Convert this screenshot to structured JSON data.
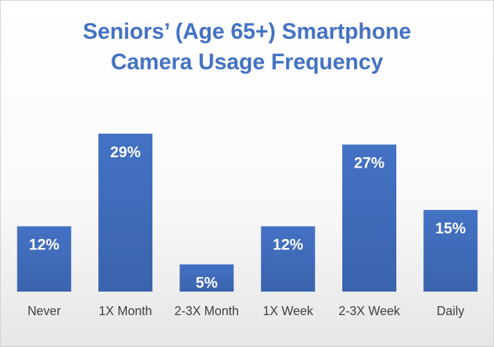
{
  "chart_data": {
    "type": "bar",
    "title_lines": [
      "Seniors’ (Age 65+) Smartphone",
      "Camera Usage Frequency"
    ],
    "categories": [
      "Never",
      "1X Month",
      "2-3X Month",
      "1X Week",
      "2-3X Week",
      "Daily"
    ],
    "values": [
      12,
      29,
      5,
      12,
      27,
      15
    ],
    "data_labels": [
      "12%",
      "29%",
      "5%",
      "12%",
      "27%",
      "15%"
    ],
    "xlabel": "",
    "ylabel": "",
    "ylim": [
      0,
      29
    ],
    "grid": false,
    "legend": "none"
  },
  "colors": {
    "bar_top": "#4472c4",
    "bar_bottom": "#3a63ad",
    "title": "#4472c4"
  }
}
